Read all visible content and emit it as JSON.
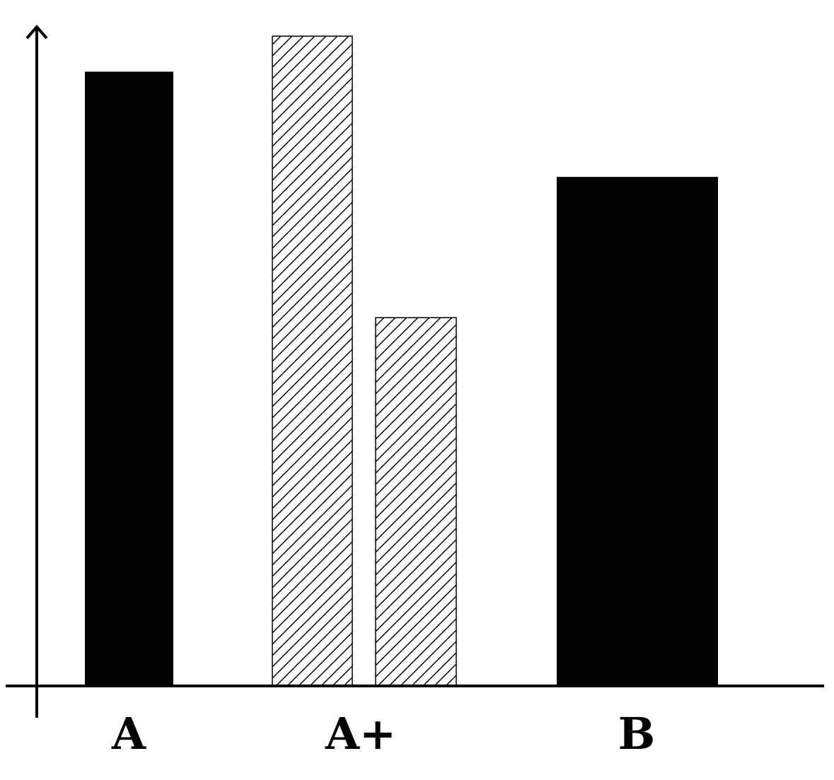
{
  "chart_data": {
    "type": "bar",
    "categories": [
      "A",
      "A+",
      "B"
    ],
    "values": [
      [
        93.4
      ],
      [
        98.8,
        56.0
      ],
      [
        77.4
      ]
    ],
    "fills": [
      "solid",
      "hatched",
      "solid"
    ],
    "color": "#000000",
    "ylim": [
      0,
      100
    ]
  }
}
